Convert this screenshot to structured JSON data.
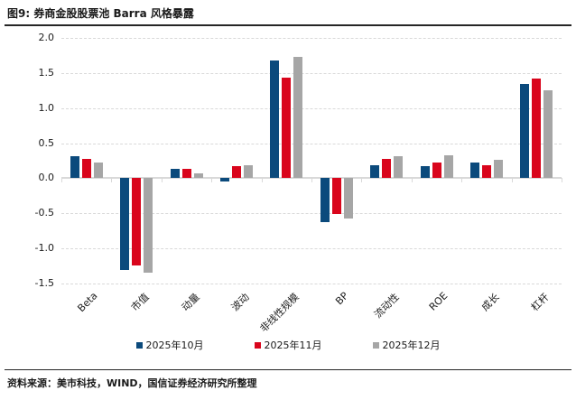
{
  "page": {
    "title": "图9: 券商金股股票池 Barra 风格暴露",
    "source": "资料来源：美市科技，WIND，国信证券经济研究所整理"
  },
  "colors": {
    "series_blue": "#0b4a7c",
    "series_red": "#d9051c",
    "series_gray": "#a6a6a6",
    "grid": "#d9d9d9",
    "rule": "#262626",
    "text": "#1a1a1a"
  },
  "chart_data": {
    "type": "bar",
    "title": "券商金股股票池 Barra 风格暴露",
    "categories": [
      "Beta",
      "市值",
      "动量",
      "波动",
      "非线性规模",
      "BP",
      "流动性",
      "ROE",
      "成长",
      "杠杆"
    ],
    "series": [
      {
        "name": "2025年10月",
        "color": "#0b4a7c",
        "values": [
          0.32,
          -1.31,
          0.13,
          -0.04,
          1.68,
          -0.63,
          0.18,
          0.17,
          0.23,
          1.35
        ]
      },
      {
        "name": "2025年11月",
        "color": "#d9051c",
        "values": [
          0.27,
          -1.24,
          0.14,
          0.17,
          1.44,
          -0.51,
          0.28,
          0.23,
          0.19,
          1.42
        ]
      },
      {
        "name": "2025年12月",
        "color": "#a6a6a6",
        "values": [
          0.22,
          -1.34,
          0.07,
          0.18,
          1.73,
          -0.57,
          0.31,
          0.33,
          0.26,
          1.25
        ]
      }
    ],
    "ylim": [
      -1.5,
      2.0
    ],
    "ytick_step": 0.5,
    "ytick_labels": [
      "2.0",
      "1.5",
      "1.0",
      "0.5",
      "0.0",
      "-0.5",
      "-1.0",
      "-1.5"
    ],
    "xlabel": "",
    "ylabel": "",
    "grid": true,
    "gridline_style": "dashed",
    "legend_position": "bottom"
  }
}
